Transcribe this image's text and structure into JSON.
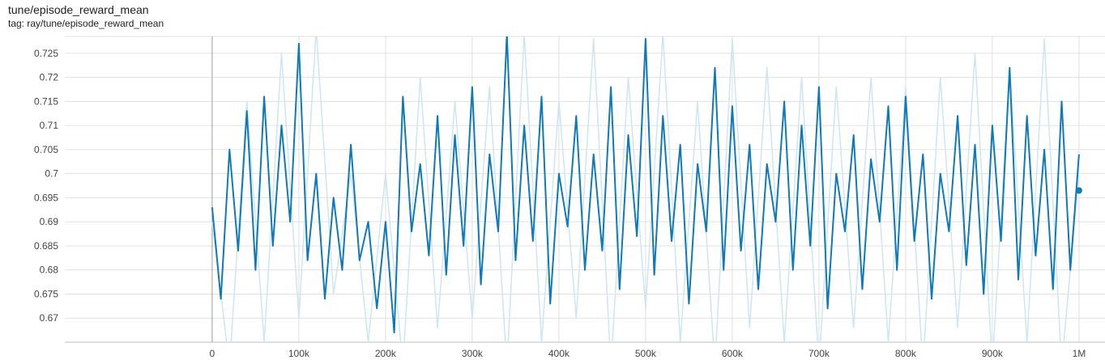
{
  "card": {
    "title": "tune/episode_reward_mean",
    "tag": "tag: ray/tune/episode_reward_mean"
  },
  "colors": {
    "raw_line": "#cde6f2",
    "smoothed_line": "#0f7ab6",
    "grid": "#e0e0e0",
    "zero_axis": "#9e9e9e"
  },
  "chart_data": {
    "type": "line",
    "title": "",
    "xlabel": "",
    "ylabel": "",
    "xlim": [
      -170000,
      1030000
    ],
    "ylim": [
      0.665,
      0.7285
    ],
    "x_ticks": [
      0,
      100000,
      200000,
      300000,
      400000,
      500000,
      600000,
      700000,
      800000,
      900000,
      1000000
    ],
    "x_tick_labels": [
      "0",
      "100k",
      "200k",
      "300k",
      "400k",
      "500k",
      "600k",
      "700k",
      "800k",
      "900k",
      "1M"
    ],
    "y_ticks": [
      0.67,
      0.675,
      0.68,
      0.685,
      0.69,
      0.695,
      0.7,
      0.705,
      0.71,
      0.715,
      0.72,
      0.725
    ],
    "y_tick_labels": [
      "0.67",
      "0.675",
      "0.68",
      "0.685",
      "0.69",
      "0.695",
      "0.7",
      "0.705",
      "0.71",
      "0.715",
      "0.72",
      "0.725"
    ],
    "grid": true,
    "legend": "none",
    "series": [
      {
        "role": "raw",
        "x": [
          0,
          20000,
          40000,
          60000,
          80000,
          100000,
          120000,
          140000,
          160000,
          180000,
          200000,
          220000,
          240000,
          260000,
          280000,
          300000,
          320000,
          340000,
          360000,
          380000,
          400000,
          420000,
          440000,
          460000,
          480000,
          500000,
          520000,
          540000,
          560000,
          580000,
          600000,
          620000,
          640000,
          660000,
          680000,
          700000,
          720000,
          740000,
          760000,
          780000,
          800000,
          820000,
          840000,
          860000,
          880000,
          900000,
          920000,
          940000,
          960000,
          980000,
          1000000
        ],
        "values": [
          0.69,
          0.66,
          0.715,
          0.665,
          0.725,
          0.67,
          0.73,
          0.675,
          0.7,
          0.665,
          0.7,
          0.66,
          0.72,
          0.668,
          0.715,
          0.67,
          0.718,
          0.66,
          0.729,
          0.665,
          0.715,
          0.67,
          0.728,
          0.66,
          0.72,
          0.672,
          0.729,
          0.665,
          0.715,
          0.66,
          0.728,
          0.668,
          0.722,
          0.665,
          0.72,
          0.66,
          0.718,
          0.668,
          0.72,
          0.665,
          0.718,
          0.66,
          0.72,
          0.668,
          0.725,
          0.66,
          0.722,
          0.665,
          0.728,
          0.66,
          0.7
        ]
      },
      {
        "role": "smoothed",
        "x": [
          0,
          10000,
          20000,
          30000,
          40000,
          50000,
          60000,
          70000,
          80000,
          90000,
          100000,
          110000,
          120000,
          130000,
          140000,
          150000,
          160000,
          170000,
          180000,
          190000,
          200000,
          210000,
          220000,
          230000,
          240000,
          250000,
          260000,
          270000,
          280000,
          290000,
          300000,
          310000,
          320000,
          330000,
          340000,
          350000,
          360000,
          370000,
          380000,
          390000,
          400000,
          410000,
          420000,
          430000,
          440000,
          450000,
          460000,
          470000,
          480000,
          490000,
          500000,
          510000,
          520000,
          530000,
          540000,
          550000,
          560000,
          570000,
          580000,
          590000,
          600000,
          610000,
          620000,
          630000,
          640000,
          650000,
          660000,
          670000,
          680000,
          690000,
          700000,
          710000,
          720000,
          730000,
          740000,
          750000,
          760000,
          770000,
          780000,
          790000,
          800000,
          810000,
          820000,
          830000,
          840000,
          850000,
          860000,
          870000,
          880000,
          890000,
          900000,
          910000,
          920000,
          930000,
          940000,
          950000,
          960000,
          970000,
          980000,
          990000,
          1000000
        ],
        "values": [
          0.693,
          0.674,
          0.705,
          0.684,
          0.713,
          0.68,
          0.716,
          0.685,
          0.71,
          0.69,
          0.727,
          0.682,
          0.7,
          0.674,
          0.695,
          0.68,
          0.706,
          0.682,
          0.69,
          0.672,
          0.69,
          0.667,
          0.716,
          0.688,
          0.702,
          0.683,
          0.712,
          0.679,
          0.708,
          0.685,
          0.718,
          0.677,
          0.704,
          0.688,
          0.729,
          0.682,
          0.71,
          0.686,
          0.716,
          0.673,
          0.7,
          0.689,
          0.712,
          0.68,
          0.704,
          0.684,
          0.718,
          0.676,
          0.708,
          0.687,
          0.728,
          0.679,
          0.712,
          0.686,
          0.706,
          0.673,
          0.702,
          0.688,
          0.722,
          0.68,
          0.714,
          0.684,
          0.706,
          0.676,
          0.702,
          0.69,
          0.715,
          0.68,
          0.71,
          0.685,
          0.718,
          0.672,
          0.7,
          0.688,
          0.708,
          0.676,
          0.703,
          0.69,
          0.714,
          0.68,
          0.716,
          0.686,
          0.704,
          0.674,
          0.7,
          0.688,
          0.712,
          0.681,
          0.706,
          0.675,
          0.71,
          0.686,
          0.722,
          0.678,
          0.712,
          0.683,
          0.705,
          0.676,
          0.715,
          0.68,
          0.704
        ]
      }
    ],
    "last_point": {
      "x": 1000000,
      "y": 0.6965
    }
  }
}
